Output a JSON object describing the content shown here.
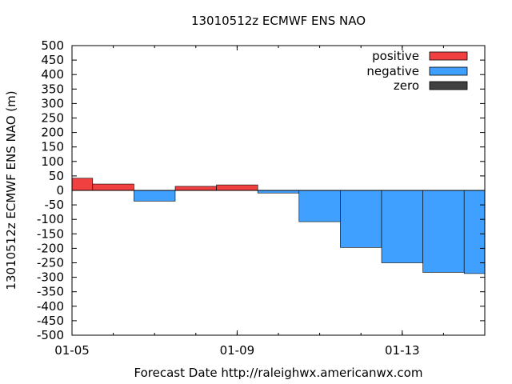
{
  "chart_data": {
    "type": "bar",
    "title": "13010512z ECMWF ENS NAO",
    "xlabel": "Forecast Date http://raleighwx.americanwx.com",
    "ylabel": "13010512z ECMWF ENS NAO (m)",
    "ylim": [
      -500,
      500
    ],
    "yticks": [
      500,
      450,
      400,
      350,
      300,
      250,
      200,
      150,
      100,
      50,
      0,
      -50,
      -100,
      -150,
      -200,
      -250,
      -300,
      -350,
      -400,
      -450,
      -500
    ],
    "xlim": [
      "2013-01-05T00:00",
      "2013-01-15T00:00"
    ],
    "xticks": [
      {
        "date": "2013-01-05T00:00",
        "label": "01-05"
      },
      {
        "date": "2013-01-09T00:00",
        "label": "01-09"
      },
      {
        "date": "2013-01-13T00:00",
        "label": "01-13"
      }
    ],
    "bars": [
      {
        "start": "2013-01-05T00:00",
        "end": "2013-01-05T12:00",
        "value": 42
      },
      {
        "start": "2013-01-05T12:00",
        "end": "2013-01-06T12:00",
        "value": 22
      },
      {
        "start": "2013-01-06T12:00",
        "end": "2013-01-07T12:00",
        "value": -37
      },
      {
        "start": "2013-01-07T12:00",
        "end": "2013-01-08T12:00",
        "value": 14
      },
      {
        "start": "2013-01-08T12:00",
        "end": "2013-01-09T12:00",
        "value": 19
      },
      {
        "start": "2013-01-09T12:00",
        "end": "2013-01-10T12:00",
        "value": -9
      },
      {
        "start": "2013-01-10T12:00",
        "end": "2013-01-11T12:00",
        "value": -108
      },
      {
        "start": "2013-01-11T12:00",
        "end": "2013-01-12T12:00",
        "value": -197
      },
      {
        "start": "2013-01-12T12:00",
        "end": "2013-01-13T12:00",
        "value": -250
      },
      {
        "start": "2013-01-13T12:00",
        "end": "2013-01-14T12:00",
        "value": -283
      },
      {
        "start": "2013-01-14T12:00",
        "end": "2013-01-15T00:00",
        "value": -287
      }
    ],
    "legend": {
      "placement": "top-right",
      "entries": [
        {
          "label": "positive",
          "color": "#f04040"
        },
        {
          "label": "negative",
          "color": "#40a0ff"
        },
        {
          "label": "zero",
          "color": "#404040"
        }
      ]
    },
    "grid": false
  }
}
